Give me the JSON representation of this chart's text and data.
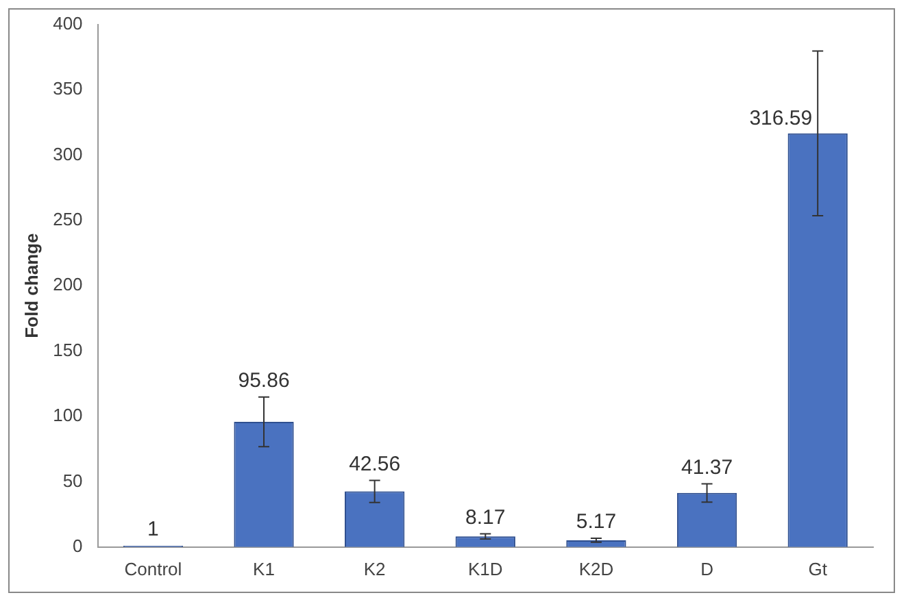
{
  "chart_data": {
    "type": "bar",
    "ylabel": "Fold change",
    "categories": [
      "Control",
      "K1",
      "K2",
      "K1D",
      "K2D",
      "D",
      "Gt"
    ],
    "values": [
      1,
      95.86,
      42.56,
      8.17,
      5.17,
      41.37,
      316.59
    ],
    "errors": [
      null,
      19,
      8.5,
      2,
      1.5,
      7,
      63
    ],
    "color": "#4a72c0",
    "ylim": [
      0,
      400
    ],
    "yticks": [
      0,
      50,
      100,
      150,
      200,
      250,
      300,
      350,
      400
    ],
    "grid": false,
    "data_labels": true,
    "legend": false
  }
}
